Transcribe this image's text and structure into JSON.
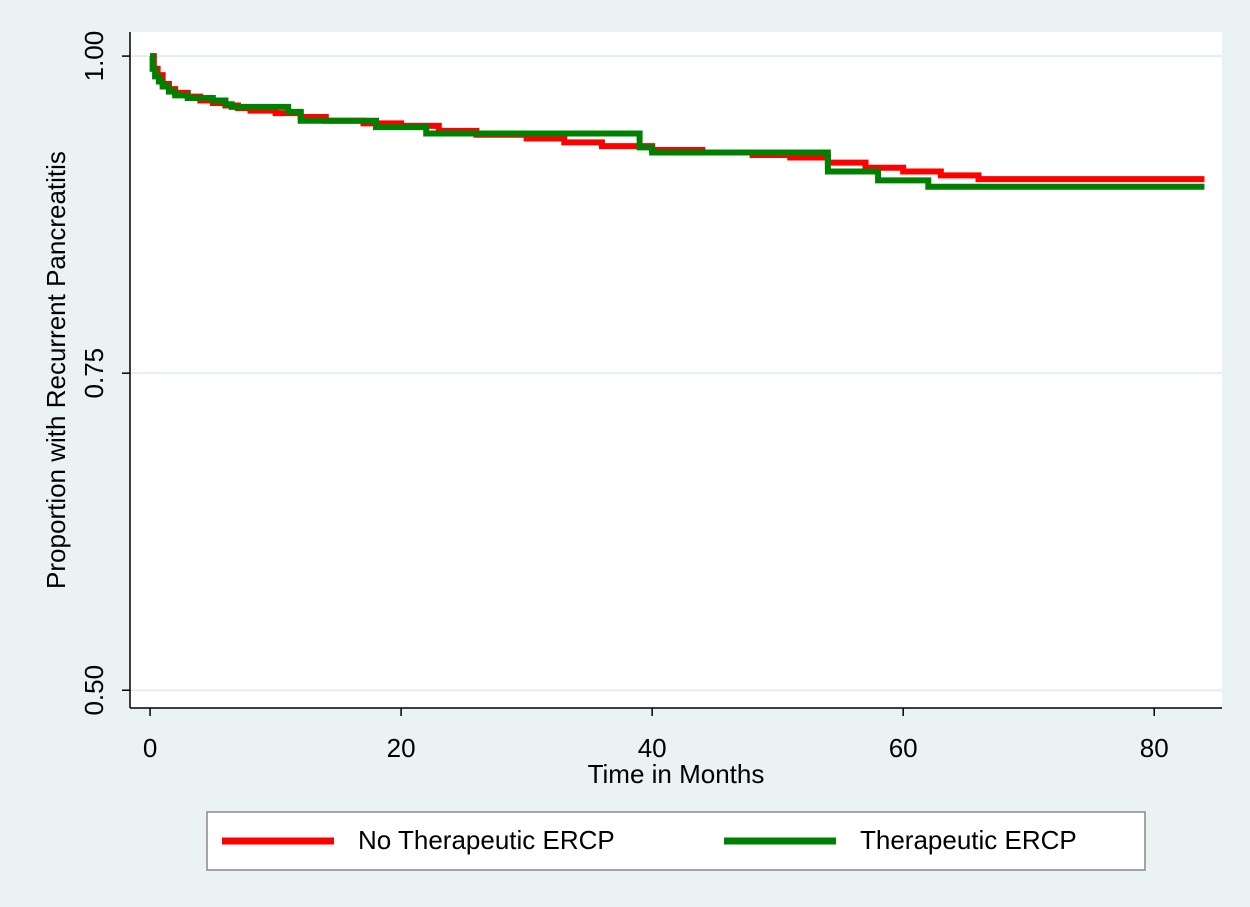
{
  "chart_data": {
    "type": "step",
    "xlabel": "Time in Months",
    "ylabel": "Proportion with Recurrent Pancreatitis",
    "xlim": [
      -1.6,
      85.4
    ],
    "ylim": [
      0.486,
      1.019
    ],
    "xticks": [
      0,
      20,
      40,
      60,
      80
    ],
    "yticks": [
      {
        "value": 0.5,
        "label": "0.50"
      },
      {
        "value": 0.75,
        "label": "0.75"
      },
      {
        "value": 1.0,
        "label": "1.00"
      }
    ],
    "grid": true,
    "legend": "bottom",
    "series": [
      {
        "name": "No Therapeutic ERCP",
        "color": "#ff0000",
        "x": [
          0,
          0.3,
          0.6,
          1,
          1.5,
          2,
          3,
          4,
          5,
          6,
          7,
          8,
          10,
          12,
          14,
          17,
          20,
          23,
          26,
          30,
          33,
          36,
          40,
          44,
          48,
          51,
          54,
          57,
          60,
          63,
          66,
          84
        ],
        "values": [
          1.0,
          0.99,
          0.985,
          0.978,
          0.974,
          0.971,
          0.968,
          0.965,
          0.963,
          0.961,
          0.959,
          0.957,
          0.955,
          0.952,
          0.949,
          0.947,
          0.945,
          0.941,
          0.938,
          0.935,
          0.932,
          0.929,
          0.926,
          0.924,
          0.922,
          0.92,
          0.916,
          0.912,
          0.909,
          0.906,
          0.903,
          0.903
        ]
      },
      {
        "name": "Therapeutic ERCP",
        "color": "#008000",
        "x": [
          0,
          0.2,
          0.4,
          0.7,
          1,
          1.5,
          2,
          3,
          5,
          6,
          6.5,
          11,
          12,
          18,
          22,
          39,
          40,
          54,
          58,
          62,
          84
        ],
        "values": [
          1.0,
          0.99,
          0.984,
          0.98,
          0.976,
          0.972,
          0.969,
          0.967,
          0.965,
          0.962,
          0.96,
          0.956,
          0.949,
          0.944,
          0.939,
          0.928,
          0.924,
          0.909,
          0.902,
          0.897,
          0.897
        ]
      }
    ]
  }
}
